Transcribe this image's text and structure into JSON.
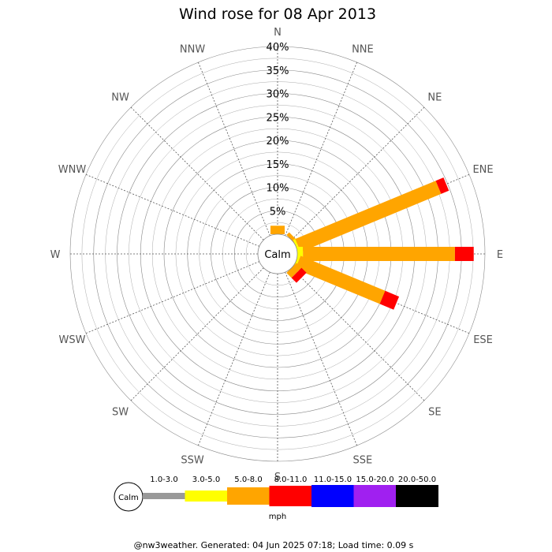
{
  "title": "Wind rose for 08 Apr 2013",
  "calm_label": "Calm",
  "footer": "@nw3weather. Generated: 04 Jun 2025 07:18; Load time: 0.09 s",
  "chart_data": {
    "type": "wind-rose",
    "title": "Wind rose for 08 Apr 2013",
    "directions": [
      "N",
      "NNE",
      "NE",
      "ENE",
      "E",
      "ESE",
      "SE",
      "SSE",
      "S",
      "SSW",
      "SW",
      "WSW",
      "W",
      "WNW",
      "NW",
      "NNW"
    ],
    "radial_ticks": [
      "5%",
      "10%",
      "15%",
      "20%",
      "25%",
      "30%",
      "35%",
      "40%"
    ],
    "radial_values": [
      5,
      10,
      15,
      20,
      25,
      30,
      35,
      40
    ],
    "rmax": 40,
    "speed_bins": [
      "1.0-3.0",
      "3.0-5.0",
      "5.0-8.0",
      "8.0-11.0",
      "11.0-15.0",
      "15.0-20.0",
      "20.0-50.0"
    ],
    "speed_colors": [
      "#999999",
      "#ffff00",
      "#ffa500",
      "#ff0000",
      "#0000ff",
      "#a020f0",
      "#000000"
    ],
    "units": "mph",
    "calm_label": "Calm",
    "series": [
      {
        "name": "1.0-3.0",
        "values": [
          0,
          0,
          0,
          0,
          0,
          0,
          0,
          0,
          0,
          0,
          0,
          0,
          0,
          0,
          0,
          0
        ]
      },
      {
        "name": "3.0-5.0",
        "values": [
          0,
          0,
          0,
          0.5,
          1.2,
          0.5,
          0,
          0,
          0,
          0,
          0,
          0,
          0,
          0,
          0,
          0
        ]
      },
      {
        "name": "5.0-8.0",
        "values": [
          1.8,
          0,
          0.8,
          32.4,
          32.4,
          19.5,
          1.5,
          0,
          0,
          0,
          0,
          0,
          0,
          0,
          0,
          0
        ]
      },
      {
        "name": "8.0-11.0",
        "values": [
          0,
          0,
          0,
          1.8,
          4.0,
          3.2,
          1.5,
          0,
          0,
          0,
          0,
          0,
          0,
          0,
          0,
          0
        ]
      },
      {
        "name": "11.0-15.0",
        "values": [
          0,
          0,
          0,
          0,
          0,
          0,
          0,
          0,
          0,
          0,
          0,
          0,
          0,
          0,
          0,
          0
        ]
      },
      {
        "name": "15.0-20.0",
        "values": [
          0,
          0,
          0,
          0,
          0,
          0,
          0,
          0,
          0,
          0,
          0,
          0,
          0,
          0,
          0,
          0
        ]
      },
      {
        "name": "20.0-50.0",
        "values": [
          0,
          0,
          0,
          0,
          0,
          0,
          0,
          0,
          0,
          0,
          0,
          0,
          0,
          0,
          0,
          0
        ]
      }
    ]
  }
}
